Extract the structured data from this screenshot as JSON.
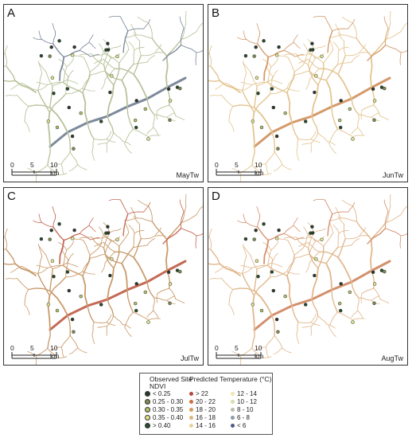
{
  "panels": [
    {
      "letter": "A",
      "variable": "MayTw",
      "river": "#b8c29a",
      "accent": "#7d8a9c"
    },
    {
      "letter": "B",
      "variable": "JunTw",
      "river": "#e3c48f",
      "accent": "#d49a6a"
    },
    {
      "letter": "C",
      "variable": "JulTw",
      "river": "#c99a6a",
      "accent": "#c46a55"
    },
    {
      "letter": "D",
      "variable": "AugTw",
      "river": "#e1b78c",
      "accent": "#d4906d"
    }
  ],
  "scalebar": {
    "ticks": [
      "0",
      "5",
      "10 km"
    ]
  },
  "legend": {
    "observed_title": "Observed Site",
    "observed_subtitle": "NDVI",
    "predicted_title": "Predicted Temperature (°C)",
    "ndvi_classes": [
      {
        "label": "< 0.25",
        "color": "#2b3a2a"
      },
      {
        "label": "0.25 - 0.30",
        "color": "#7c8c52"
      },
      {
        "label": "0.30 - 0.35",
        "color": "#b4bf6a"
      },
      {
        "label": "0.35 - 0.40",
        "color": "#e0e38a"
      },
      {
        "label": "> 0.40",
        "color": "#274b2b"
      }
    ],
    "temp_col1": [
      {
        "label": "> 22",
        "color": "#b24a3a"
      },
      {
        "label": "20 - 22",
        "color": "#c8703f"
      },
      {
        "label": "18 - 20",
        "color": "#d39a5a"
      },
      {
        "label": "16 - 18",
        "color": "#ddb57a"
      },
      {
        "label": "14 - 16",
        "color": "#e8d29a"
      }
    ],
    "temp_col2": [
      {
        "label": "12 - 14",
        "color": "#efe6b0"
      },
      {
        "label": "10 - 12",
        "color": "#d8dcae"
      },
      {
        "label": "8 - 10",
        "color": "#b6bfa6"
      },
      {
        "label": "6 - 8",
        "color": "#8e9aa8"
      },
      {
        "label": "< 6",
        "color": "#4b5c8a"
      }
    ]
  }
}
